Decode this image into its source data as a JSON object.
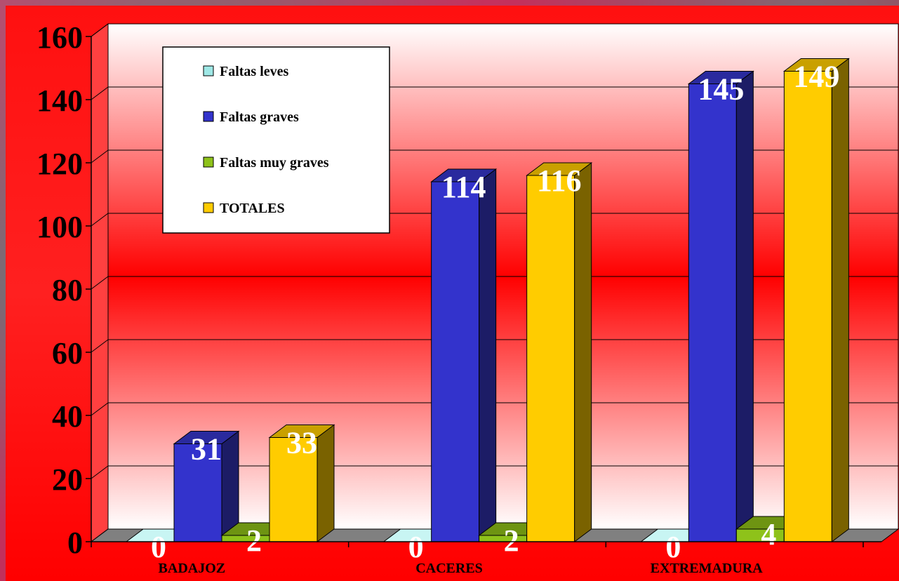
{
  "chart_data": {
    "type": "bar",
    "categories": [
      "BADAJOZ",
      "CACERES",
      "EXTREMADURA"
    ],
    "series": [
      {
        "name": "Faltas leves",
        "values": [
          0,
          0,
          0
        ],
        "labels": [
          "0",
          "0",
          "0"
        ],
        "color": "#9fe8e6",
        "side": "#5fb8b6",
        "top": "#c8f5f3"
      },
      {
        "name": "Faltas graves",
        "values": [
          31,
          114,
          145
        ],
        "labels": [
          "31",
          "114",
          "145"
        ],
        "color": "#3333cc",
        "side": "#1c1c66",
        "top": "#2a2a9e"
      },
      {
        "name": "Faltas muy graves",
        "values": [
          2,
          2,
          4
        ],
        "labels": [
          "2",
          "2",
          "4"
        ],
        "color": "#8ec21a",
        "side": "#4d6b0a",
        "top": "#6e9412"
      },
      {
        "name": "TOTALES",
        "values": [
          33,
          116,
          149
        ],
        "labels": [
          "33",
          "116",
          "149"
        ],
        "color": "#ffcc00",
        "side": "#7a6200",
        "top": "#c9a000"
      }
    ],
    "title": "",
    "xlabel": "",
    "ylabel": "",
    "ylim": [
      0,
      160
    ],
    "yticks": [
      "0",
      "20",
      "40",
      "60",
      "80",
      "100",
      "120",
      "140",
      "160"
    ],
    "grid": true,
    "legend_position": "top-left"
  }
}
